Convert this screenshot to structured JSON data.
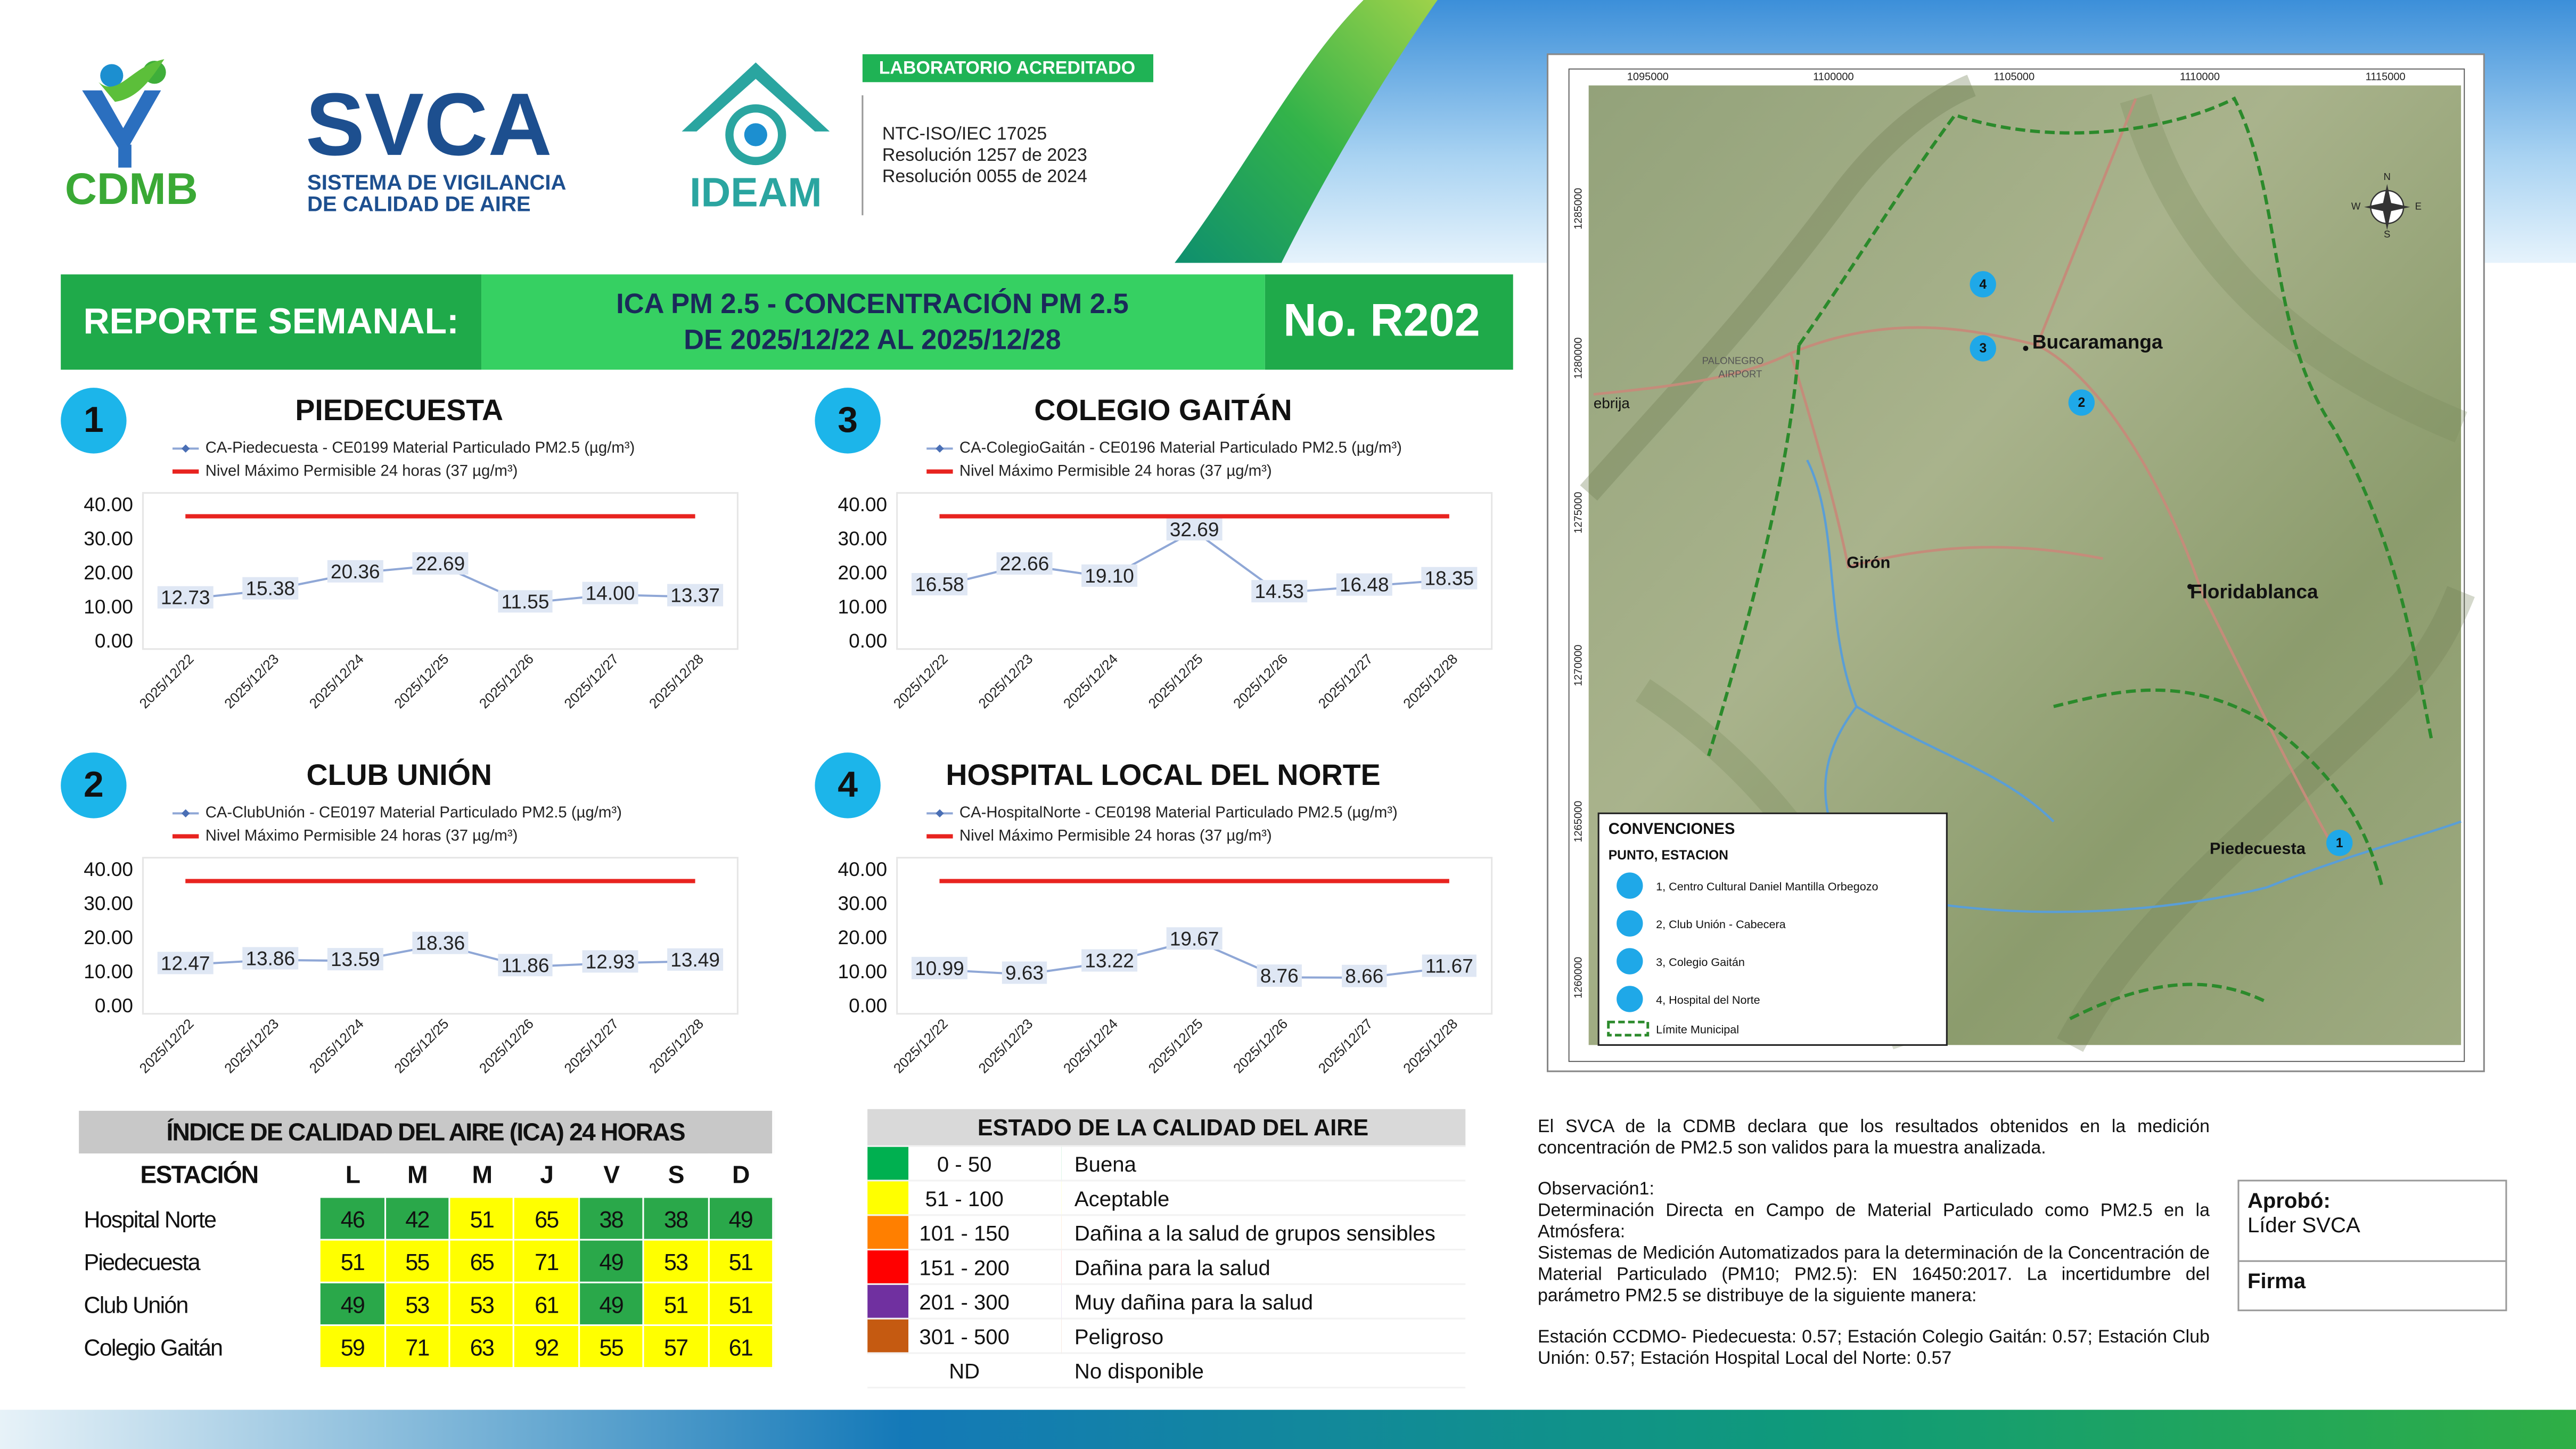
{
  "header": {
    "cdmb": "CDMB",
    "svca": "SVCA",
    "svca_subtitle": [
      "SISTEMA DE VIGILANCIA",
      "DE CALIDAD DE AIRE"
    ],
    "ideam": "IDEAM",
    "accreditation_badge": "LABORATORIO ACREDITADO",
    "accreditation_lines": [
      "NTC-ISO/IEC 17025",
      "Resolución 1257 de 2023",
      "Resolución 0055 de 2024"
    ]
  },
  "banner": {
    "label": "REPORTE SEMANAL:",
    "title": [
      "ICA PM 2.5 - CONCENTRACIÓN PM 2.5",
      "DE 2025/12/22 AL 2025/12/28"
    ],
    "number": "No. R202"
  },
  "chart_data": [
    {
      "type": "line",
      "badge": "1",
      "title": "PIEDECUESTA",
      "categories": [
        "2025/12/22",
        "2025/12/23",
        "2025/12/24",
        "2025/12/25",
        "2025/12/26",
        "2025/12/27",
        "2025/12/28"
      ],
      "series": [
        {
          "name": "CA-Piedecuesta - CE0199 Material Particulado PM2.5 (µg/m³)",
          "color": "#8fa7d6",
          "values": [
            12.73,
            15.38,
            20.36,
            22.69,
            11.55,
            14.0,
            13.37
          ],
          "value_labels": [
            "12.73",
            "15.38",
            "20.36",
            "22.69",
            "11.55",
            "14.00",
            "13.37"
          ]
        },
        {
          "name": "Nivel Máximo Permisible 24 horas (37 µg/m³)",
          "color": "#e8231f",
          "values": [
            37,
            37,
            37,
            37,
            37,
            37,
            37
          ]
        }
      ],
      "ylim": [
        0,
        40
      ],
      "yticks": [
        {
          "value": 0,
          "label": "0.00"
        },
        {
          "value": 10,
          "label": "10.00"
        },
        {
          "value": 20,
          "label": "20.00"
        },
        {
          "value": 30,
          "label": "30.00"
        },
        {
          "value": 40,
          "label": "40.00"
        }
      ]
    },
    {
      "type": "line",
      "badge": "2",
      "title": "CLUB UNIÓN",
      "categories": [
        "2025/12/22",
        "2025/12/23",
        "2025/12/24",
        "2025/12/25",
        "2025/12/26",
        "2025/12/27",
        "2025/12/28"
      ],
      "series": [
        {
          "name": "CA-ClubUnión - CE0197 Material Particulado PM2.5 (µg/m³)",
          "color": "#8fa7d6",
          "values": [
            12.47,
            13.86,
            13.59,
            18.36,
            11.86,
            12.93,
            13.49
          ],
          "value_labels": [
            "12.47",
            "13.86",
            "13.59",
            "18.36",
            "11.86",
            "12.93",
            "13.49"
          ]
        },
        {
          "name": "Nivel Máximo Permisible 24 horas (37 µg/m³)",
          "color": "#e8231f",
          "values": [
            37,
            37,
            37,
            37,
            37,
            37,
            37
          ]
        }
      ],
      "ylim": [
        0,
        40
      ],
      "yticks": [
        {
          "value": 0,
          "label": "0.00"
        },
        {
          "value": 10,
          "label": "10.00"
        },
        {
          "value": 20,
          "label": "20.00"
        },
        {
          "value": 30,
          "label": "30.00"
        },
        {
          "value": 40,
          "label": "40.00"
        }
      ]
    },
    {
      "type": "line",
      "badge": "3",
      "title": "COLEGIO GAITÁN",
      "categories": [
        "2025/12/22",
        "2025/12/23",
        "2025/12/24",
        "2025/12/25",
        "2025/12/26",
        "2025/12/27",
        "2025/12/28"
      ],
      "series": [
        {
          "name": "CA-ColegioGaitán - CE0196 Material Particulado PM2.5 (µg/m³)",
          "color": "#8fa7d6",
          "values": [
            16.58,
            22.66,
            19.1,
            32.69,
            14.53,
            16.48,
            18.35
          ],
          "value_labels": [
            "16.58",
            "22.66",
            "19.10",
            "32.69",
            "14.53",
            "16.48",
            "18.35"
          ]
        },
        {
          "name": "Nivel Máximo Permisible 24 horas (37 µg/m³)",
          "color": "#e8231f",
          "values": [
            37,
            37,
            37,
            37,
            37,
            37,
            37
          ]
        }
      ],
      "ylim": [
        0,
        40
      ],
      "yticks": [
        {
          "value": 0,
          "label": "0.00"
        },
        {
          "value": 10,
          "label": "10.00"
        },
        {
          "value": 20,
          "label": "20.00"
        },
        {
          "value": 30,
          "label": "30.00"
        },
        {
          "value": 40,
          "label": "40.00"
        }
      ]
    },
    {
      "type": "line",
      "badge": "4",
      "title": "HOSPITAL LOCAL DEL NORTE",
      "categories": [
        "2025/12/22",
        "2025/12/23",
        "2025/12/24",
        "2025/12/25",
        "2025/12/26",
        "2025/12/27",
        "2025/12/28"
      ],
      "series": [
        {
          "name": "CA-HospitalNorte - CE0198 Material Particulado PM2.5 (µg/m³)",
          "color": "#8fa7d6",
          "values": [
            10.99,
            9.63,
            13.22,
            19.67,
            8.76,
            8.66,
            11.67
          ],
          "value_labels": [
            "10.99",
            "9.63",
            "13.22",
            "19.67",
            "8.76",
            "8.66",
            "11.67"
          ]
        },
        {
          "name": "Nivel Máximo Permisible 24 horas (37 µg/m³)",
          "color": "#e8231f",
          "values": [
            37,
            37,
            37,
            37,
            37,
            37,
            37
          ]
        }
      ],
      "ylim": [
        0,
        40
      ],
      "yticks": [
        {
          "value": 0,
          "label": "0.00"
        },
        {
          "value": 10,
          "label": "10.00"
        },
        {
          "value": 20,
          "label": "20.00"
        },
        {
          "value": 30,
          "label": "30.00"
        },
        {
          "value": 40,
          "label": "40.00"
        }
      ]
    }
  ],
  "ica_table": {
    "title": "ÍNDICE DE CALIDAD DEL AIRE (ICA) 24 HORAS",
    "columns": [
      "ESTACIÓN",
      "L",
      "M",
      "M",
      "J",
      "V",
      "S",
      "D"
    ],
    "rows": [
      {
        "station": "Hospital Norte",
        "values": [
          46,
          42,
          51,
          65,
          38,
          38,
          49
        ],
        "colors": [
          "#2aa84a",
          "#2aa84a",
          "#ffff00",
          "#ffff00",
          "#2aa84a",
          "#2aa84a",
          "#2aa84a"
        ]
      },
      {
        "station": "Piedecuesta",
        "values": [
          51,
          55,
          65,
          71,
          49,
          53,
          51
        ],
        "colors": [
          "#ffff00",
          "#ffff00",
          "#ffff00",
          "#ffff00",
          "#2aa84a",
          "#ffff00",
          "#ffff00"
        ]
      },
      {
        "station": "Club Unión",
        "values": [
          49,
          53,
          53,
          61,
          49,
          51,
          51
        ],
        "colors": [
          "#2aa84a",
          "#ffff00",
          "#ffff00",
          "#ffff00",
          "#2aa84a",
          "#ffff00",
          "#ffff00"
        ]
      },
      {
        "station": "Colegio Gaitán",
        "values": [
          59,
          71,
          63,
          92,
          55,
          57,
          61
        ],
        "colors": [
          "#ffff00",
          "#ffff00",
          "#ffff00",
          "#ffff00",
          "#ffff00",
          "#ffff00",
          "#ffff00"
        ]
      }
    ]
  },
  "quality_legend": {
    "title": "ESTADO DE LA CALIDAD DEL AIRE",
    "rows": [
      {
        "color": "#00b050",
        "range": "0 - 50",
        "label": "Buena"
      },
      {
        "color": "#ffff00",
        "range": "51 - 100",
        "label": "Aceptable"
      },
      {
        "color": "#ff7f00",
        "range": "101 - 150",
        "label": "Dañina a la salud de grupos sensibles"
      },
      {
        "color": "#ff0000",
        "range": "151 - 200",
        "label": "Dañina para la salud"
      },
      {
        "color": "#7030a0",
        "range": "201 - 300",
        "label": "Muy dañina para la salud"
      },
      {
        "color": "#c55a11",
        "range": "301 - 500",
        "label": "Peligroso"
      },
      {
        "color": "#ffffff",
        "range": "ND",
        "label": "No disponible"
      }
    ]
  },
  "map": {
    "x_labels": [
      "1095000",
      "1100000",
      "1105000",
      "1110000",
      "1115000"
    ],
    "y_labels": [
      "1285000",
      "1280000",
      "1275000",
      "1270000",
      "1265000",
      "1260000"
    ],
    "places": [
      "Bucaramanga",
      "Floridablanca",
      "Girón",
      "Piedecuesta",
      "ebrija",
      "PALONEGRO",
      "AIRPORT"
    ],
    "stations": [
      "1",
      "2",
      "3",
      "4"
    ],
    "compass": [
      "N",
      "S",
      "E",
      "W"
    ],
    "legend": {
      "title": "CONVENCIONES",
      "subtitle": "PUNTO, ESTACION",
      "items": [
        "1, Centro Cultural Daniel Mantilla Orbegozo",
        "2, Club Unión - Cabecera",
        "3, Colegio Gaitán",
        "4, Hospital del Norte"
      ],
      "boundary": "Límite Municipal"
    }
  },
  "notes": [
    "El SVCA  de la CDMB declara que los resultados obtenidos en la medición concentración de PM2.5 son validos para la muestra  analizada.",
    "Observación1:",
    "Determinación Directa en Campo de Material Particulado como PM2.5 en la Atmósfera:",
    "Sistemas de Medición Automatizados para la  determinación de la Concentración de Material Particulado (PM10;  PM2.5): EN 16450:2017. La incertidumbre del parámetro PM2.5 se distribuye de la siguiente manera:",
    "Estación CCDMO- Piedecuesta: 0.57; Estación Colegio Gaitán: 0.57; Estación Club Unión: 0.57; Estación Hospital Local del Norte: 0.57"
  ],
  "approval": {
    "label": "Aprobó:",
    "by": "Líder SVCA",
    "signature": "Firma"
  }
}
